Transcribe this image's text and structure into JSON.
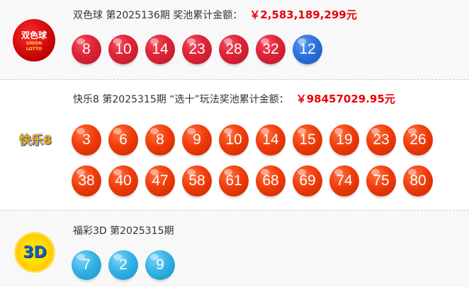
{
  "sections": [
    {
      "name": "双色球",
      "issue": "第2025136期",
      "pool_label": "奖池累计金额：",
      "pool": "￥2,583,189,299元",
      "logo_text": "双色球",
      "logo_sub": "UNION LOTTO",
      "red_balls": [
        "8",
        "10",
        "14",
        "23",
        "28",
        "32"
      ],
      "blue_balls": [
        "12"
      ]
    },
    {
      "name": "快乐8",
      "issue": "第2025315期",
      "pool_label": "“选十”玩法奖池累计金额：",
      "pool": "￥98457029.95元",
      "logo_text": "快乐8",
      "balls": [
        "3",
        "6",
        "8",
        "9",
        "10",
        "14",
        "15",
        "19",
        "23",
        "26",
        "38",
        "40",
        "47",
        "58",
        "61",
        "68",
        "69",
        "74",
        "75",
        "80"
      ]
    },
    {
      "name": "福彩3D",
      "issue": "第2025315期",
      "logo_text": "3D",
      "balls": [
        "7",
        "2",
        "9"
      ]
    }
  ],
  "colors": {
    "red": "#e0253a",
    "blue": "#2a72dc",
    "orange": "#f03c0a",
    "sky": "#33b2e6",
    "pool": "#e8000b"
  }
}
